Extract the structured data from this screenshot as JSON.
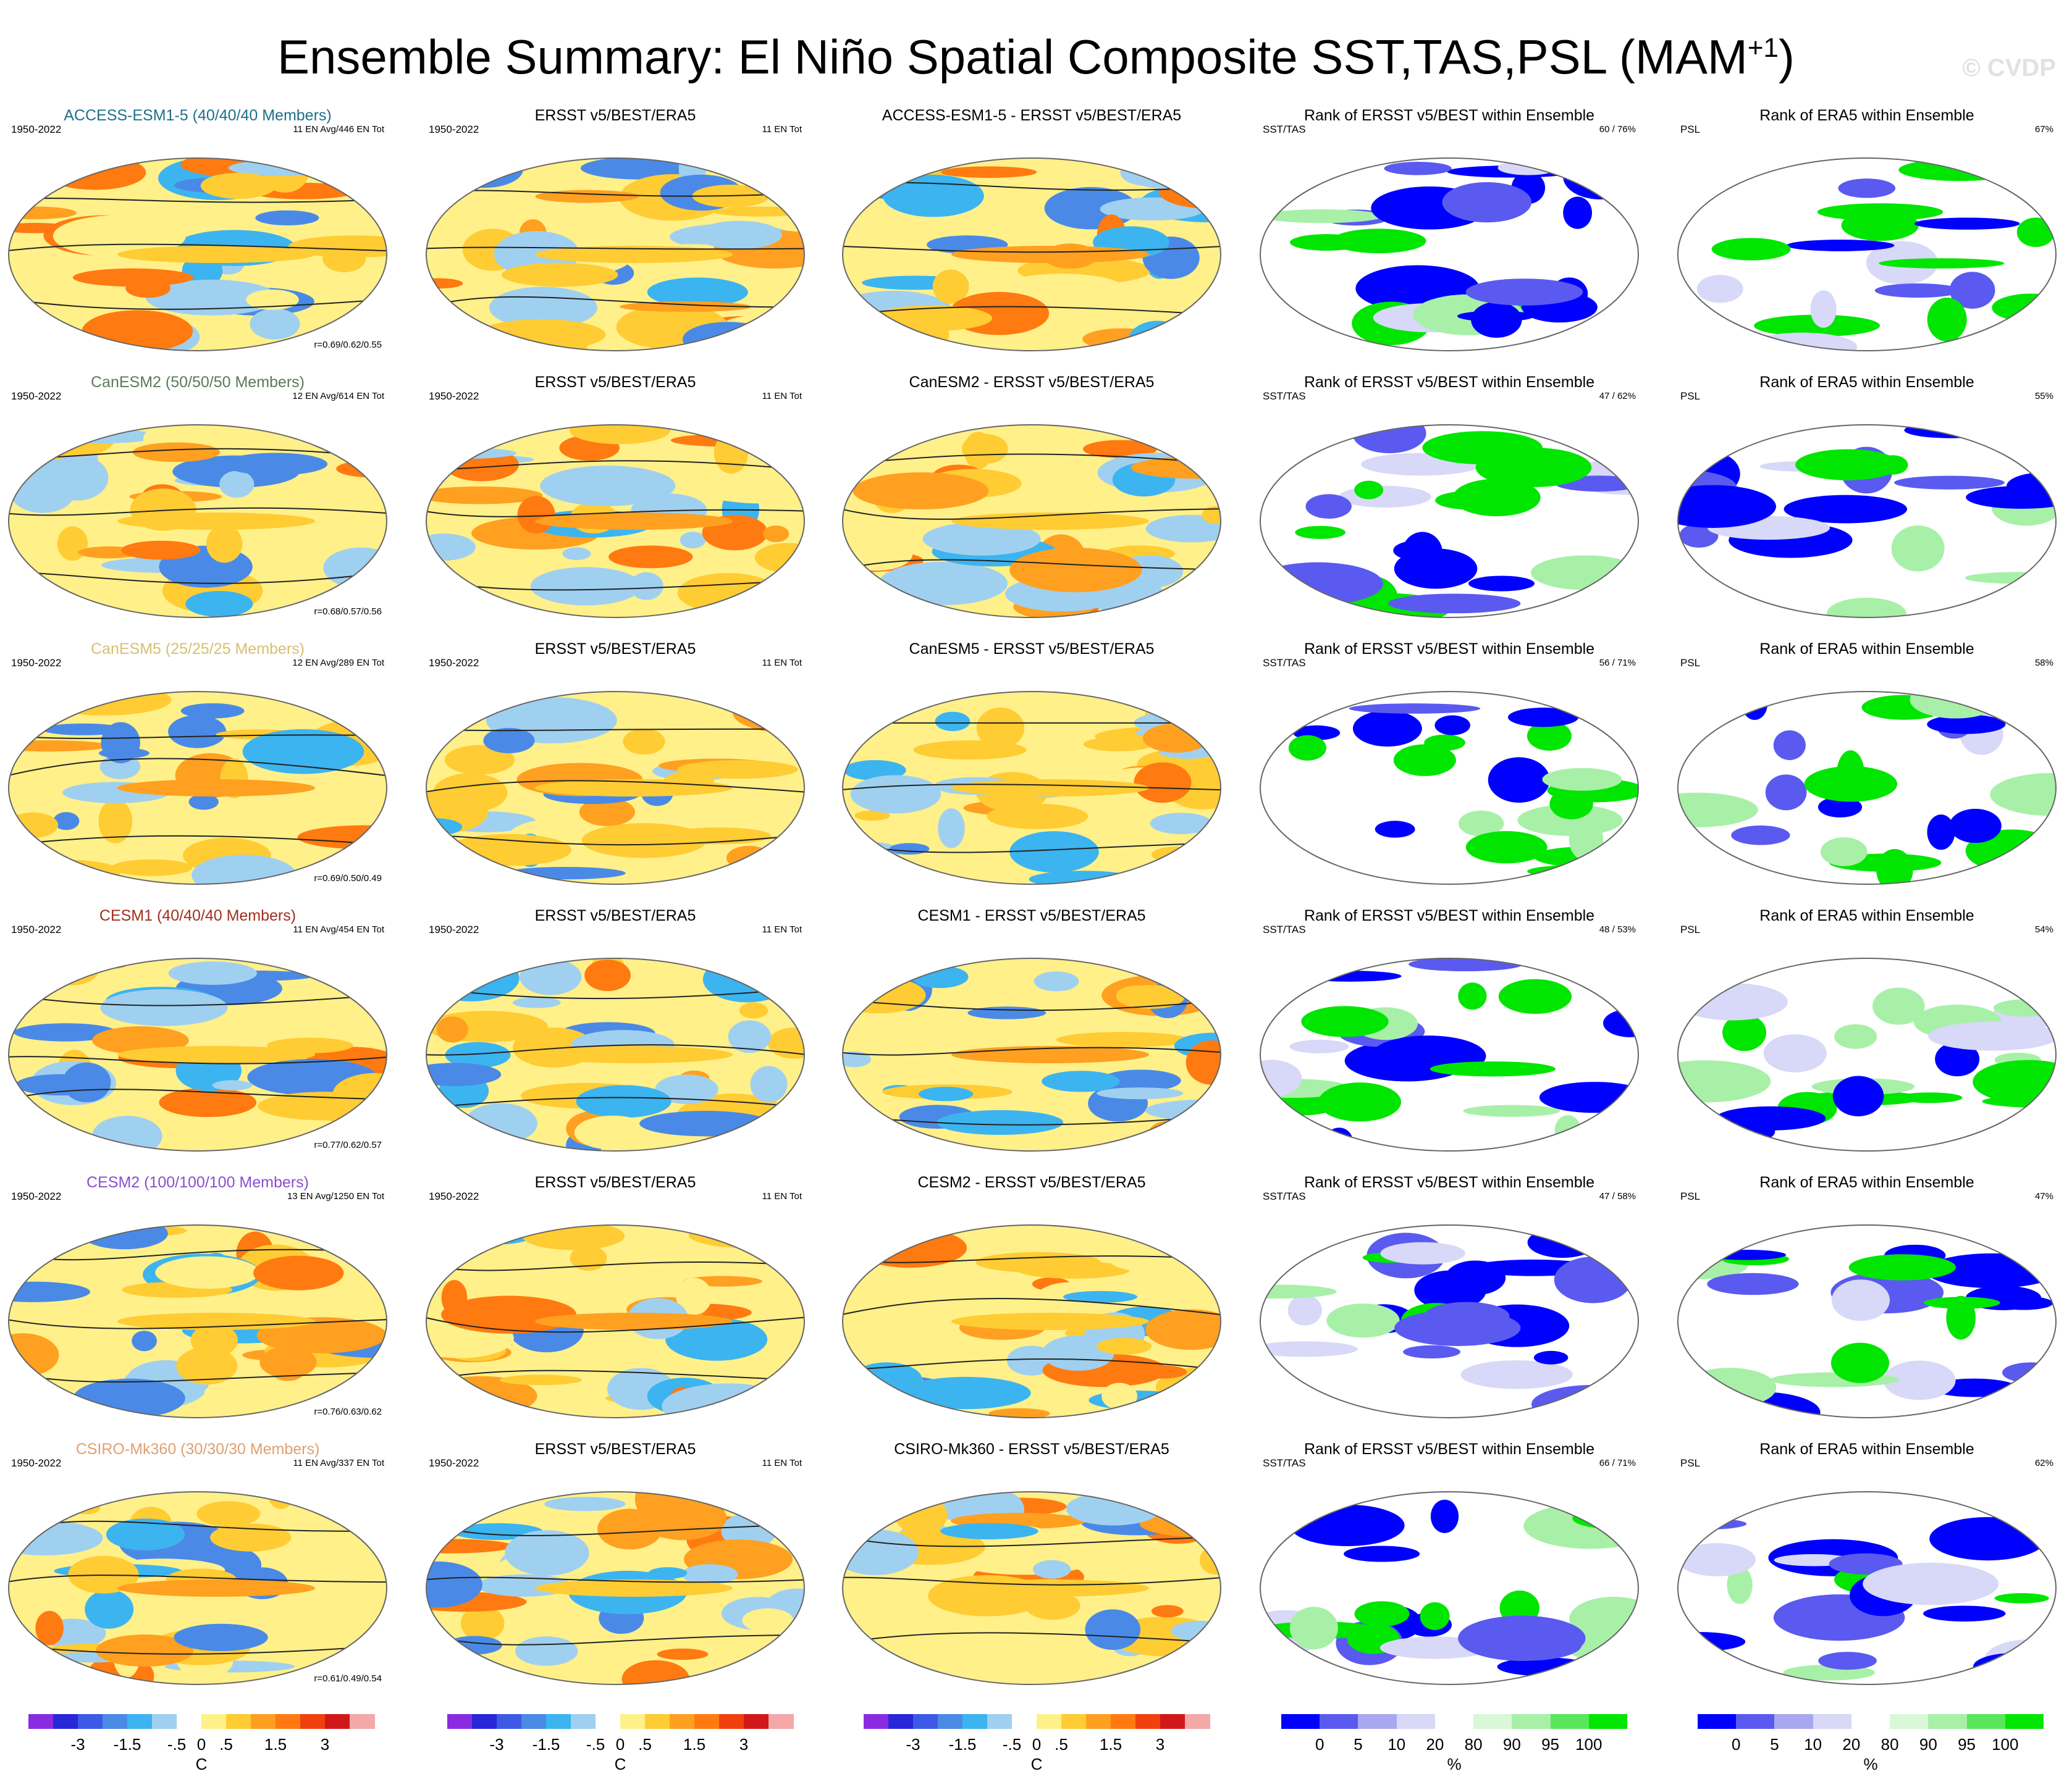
{
  "title": {
    "main": "Ensemble Summary: El Niño Spatial Composite SST,TAS,PSL (MAM",
    "sup": "+1",
    "close": ")",
    "watermark": "© CVDP"
  },
  "colors": {
    "title_access": "#1f6f8b",
    "title_canesm2": "#5a7a5a",
    "title_canesm5": "#d8c070",
    "title_cesm1": "#a03020",
    "title_cesm2": "#8a4fcf",
    "title_csiro": "#e0a070"
  },
  "rows": [
    {
      "model": "ACCESS-ESM1-5",
      "p1": {
        "title": "ACCESS-ESM1-5 (40/40/40 Members)",
        "years": "1950-2022",
        "info": "11 EN Avg/446 EN Tot",
        "corr": "r=0.69/0.62/0.55"
      },
      "p2": {
        "title": "ERSST v5/BEST/ERA5",
        "years": "1950-2022",
        "info": "11 EN Tot"
      },
      "p3": {
        "title": "ACCESS-ESM1-5 - ERSST v5/BEST/ERA5"
      },
      "p4": {
        "title": "Rank of ERSST v5/BEST within Ensemble",
        "vars": "SST/TAS",
        "pct": "60 /  76%"
      },
      "p5": {
        "title": "Rank of ERA5 within Ensemble",
        "vars": "PSL",
        "pct": "67%"
      }
    },
    {
      "model": "CanESM2",
      "p1": {
        "title": "CanESM2 (50/50/50 Members)",
        "years": "1950-2022",
        "info": "12 EN Avg/614 EN Tot",
        "corr": "r=0.68/0.57/0.56"
      },
      "p2": {
        "title": "ERSST v5/BEST/ERA5",
        "years": "1950-2022",
        "info": "11 EN Tot"
      },
      "p3": {
        "title": "CanESM2 - ERSST v5/BEST/ERA5"
      },
      "p4": {
        "title": "Rank of ERSST v5/BEST within Ensemble",
        "vars": "SST/TAS",
        "pct": "47 /  62%"
      },
      "p5": {
        "title": "Rank of ERA5 within Ensemble",
        "vars": "PSL",
        "pct": "55%"
      }
    },
    {
      "model": "CanESM5",
      "p1": {
        "title": "CanESM5 (25/25/25 Members)",
        "years": "1950-2022",
        "info": "12 EN Avg/289 EN Tot",
        "corr": "r=0.69/0.50/0.49"
      },
      "p2": {
        "title": "ERSST v5/BEST/ERA5",
        "years": "1950-2022",
        "info": "11 EN Tot"
      },
      "p3": {
        "title": "CanESM5 - ERSST v5/BEST/ERA5"
      },
      "p4": {
        "title": "Rank of ERSST v5/BEST within Ensemble",
        "vars": "SST/TAS",
        "pct": "56 /  71%"
      },
      "p5": {
        "title": "Rank of ERA5 within Ensemble",
        "vars": "PSL",
        "pct": "58%"
      }
    },
    {
      "model": "CESM1",
      "p1": {
        "title": "CESM1 (40/40/40 Members)",
        "years": "1950-2022",
        "info": "11 EN Avg/454 EN Tot",
        "corr": "r=0.77/0.62/0.57"
      },
      "p2": {
        "title": "ERSST v5/BEST/ERA5",
        "years": "1950-2022",
        "info": "11 EN Tot"
      },
      "p3": {
        "title": "CESM1 - ERSST v5/BEST/ERA5"
      },
      "p4": {
        "title": "Rank of ERSST v5/BEST within Ensemble",
        "vars": "SST/TAS",
        "pct": "48 /  53%"
      },
      "p5": {
        "title": "Rank of ERA5 within Ensemble",
        "vars": "PSL",
        "pct": "54%"
      }
    },
    {
      "model": "CESM2",
      "p1": {
        "title": "CESM2 (100/100/100 Members)",
        "years": "1950-2022",
        "info": "13 EN Avg/1250 EN Tot",
        "corr": "r=0.76/0.63/0.62"
      },
      "p2": {
        "title": "ERSST v5/BEST/ERA5",
        "years": "1950-2022",
        "info": "11 EN Tot"
      },
      "p3": {
        "title": "CESM2 - ERSST v5/BEST/ERA5"
      },
      "p4": {
        "title": "Rank of ERSST v5/BEST within Ensemble",
        "vars": "SST/TAS",
        "pct": "47 /  58%"
      },
      "p5": {
        "title": "Rank of ERA5 within Ensemble",
        "vars": "PSL",
        "pct": "47%"
      }
    },
    {
      "model": "CSIRO-Mk360",
      "p1": {
        "title": "CSIRO-Mk360 (30/30/30 Members)",
        "years": "1950-2022",
        "info": "11 EN Avg/337 EN Tot",
        "corr": "r=0.61/0.49/0.54"
      },
      "p2": {
        "title": "ERSST v5/BEST/ERA5",
        "years": "1950-2022",
        "info": "11 EN Tot"
      },
      "p3": {
        "title": "CSIRO-Mk360 - ERSST v5/BEST/ERA5"
      },
      "p4": {
        "title": "Rank of ERSST v5/BEST within Ensemble",
        "vars": "SST/TAS",
        "pct": "66 /  71%"
      },
      "p5": {
        "title": "Rank of ERA5 within Ensemble",
        "vars": "PSL",
        "pct": "62%"
      }
    }
  ],
  "colorbars": {
    "temp": {
      "colors": [
        "#8a2be2",
        "#2828d8",
        "#3c5ae6",
        "#4a8ae6",
        "#3cb4f0",
        "#a0d0f0",
        "#ffffff",
        "#fff08a",
        "#ffcc33",
        "#ffa020",
        "#ff7a10",
        "#f04010",
        "#d01818",
        "#f4a8a8"
      ],
      "labels": [
        "-3",
        "-1.5",
        "-.5",
        "0",
        ".5",
        "1.5",
        "3"
      ],
      "label_positions": [
        2,
        4,
        6,
        7,
        8,
        10,
        12
      ],
      "unit": "C"
    },
    "rank": {
      "colors": [
        "#0000ff",
        "#5a5af0",
        "#a8a8f0",
        "#d8d8f8",
        "#ffffff",
        "#d8f8d8",
        "#a8f0a8",
        "#5ae65a",
        "#00e600"
      ],
      "labels": [
        "0",
        "5",
        "10",
        "20",
        "80",
        "90",
        "95",
        "100"
      ],
      "label_positions": [
        1,
        2,
        3,
        4,
        5,
        6,
        7,
        8
      ],
      "unit": "%"
    }
  }
}
